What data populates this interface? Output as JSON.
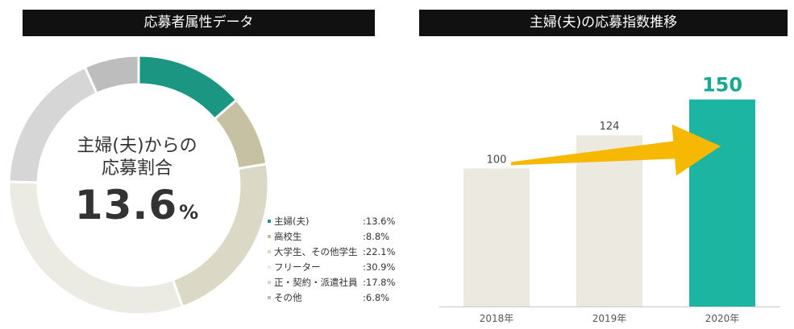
{
  "left_panel": {
    "title": "応募者属性データ",
    "center_caption_line1": "主婦(夫)からの",
    "center_caption_line2": "応募割合",
    "center_value": "13.6",
    "center_unit": "%"
  },
  "right_panel": {
    "title": "主婦(夫)の応募指数推移"
  },
  "chart_data": [
    {
      "type": "pie",
      "variant": "donut",
      "title": "応募者属性データ",
      "slices": [
        {
          "label": "主婦(夫)",
          "value": 13.6,
          "display": ":13.6%",
          "color": "#1a9682"
        },
        {
          "label": "高校生",
          "value": 8.8,
          "display": ":8.8%",
          "color": "#c6c1a2"
        },
        {
          "label": "大学生、その他学生",
          "value": 22.1,
          "display": ":22.1%",
          "color": "#dbd8c6"
        },
        {
          "label": "フリーター",
          "value": 30.9,
          "display": ":30.9%",
          "color": "#ecebe3"
        },
        {
          "label": "正・契約・派遣社員",
          "value": 17.8,
          "display": ":17.8%",
          "color": "#d6d6d6"
        },
        {
          "label": "その他",
          "value": 6.8,
          "display": ":6.8%",
          "color": "#bdbdbd"
        }
      ],
      "legend_position": "bottom-right"
    },
    {
      "type": "bar",
      "title": "主婦(夫)の応募指数推移",
      "categories": [
        "2018年",
        "2019年",
        "2020年"
      ],
      "values": [
        100,
        124,
        150
      ],
      "colors": [
        "#eceae0",
        "#eceae0",
        "#1bb5a2"
      ],
      "arrow_color": "#f6b800",
      "ylim": [
        0,
        190
      ],
      "grid": false
    }
  ]
}
